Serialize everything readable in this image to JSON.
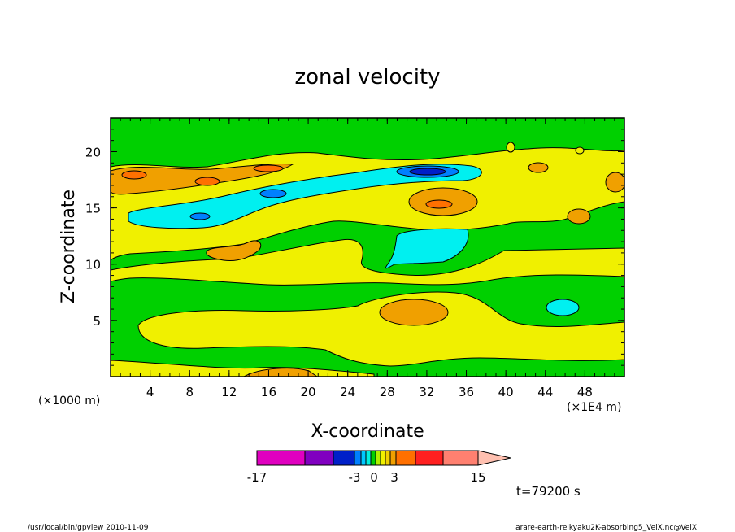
{
  "chart_data": {
    "type": "heatmap",
    "title": "zonal velocity",
    "xlabel": "X-coordinate",
    "ylabel": "Z-coordinate",
    "x_scale_note": "(×1E4 m)",
    "y_scale_note": "(×1000 m)",
    "x_range": [
      0,
      52
    ],
    "y_range": [
      0,
      23
    ],
    "x_ticks": [
      "4",
      "8",
      "12",
      "16",
      "20",
      "24",
      "28",
      "32",
      "36",
      "40",
      "44",
      "48"
    ],
    "y_ticks": [
      "5",
      "10",
      "15",
      "20"
    ],
    "time_label": "t=79200 s",
    "colorbar": {
      "labels": [
        "-17",
        "-3",
        "0",
        "3",
        "15"
      ],
      "colors": [
        "#e000c0",
        "#8000c0",
        "#0020c8",
        "#0080ff",
        "#00c8ff",
        "#00f0e0",
        "#00d000",
        "#b0f000",
        "#f0f000",
        "#f0d000",
        "#f0a000",
        "#ff7000",
        "#ff2020",
        "#ff8070",
        "#ffc0b0"
      ]
    },
    "levels_description": "filled contours of zonal velocity",
    "regions": [
      {
        "value_class": "green",
        "description": "background"
      },
      {
        "value_class": "yellow"
      },
      {
        "value_class": "orange"
      },
      {
        "value_class": "cyan"
      },
      {
        "value_class": "blue"
      }
    ]
  },
  "footer": {
    "left": "/usr/local/bin/gpview  2010-11-09",
    "right": "arare-earth-reikyaku2K-absorbing5_VelX.nc@VelX"
  }
}
